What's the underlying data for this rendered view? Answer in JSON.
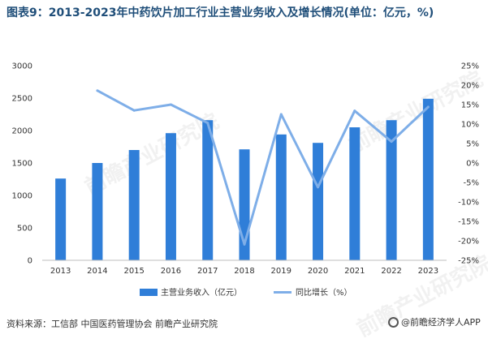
{
  "title": "图表9：2013-2023年中药饮片加工行业主营业务收入及增长情况(单位：亿元，%)",
  "source": "资料来源：工信部 中国医药管理协会 前瞻产业研究院",
  "brand": "@前瞻经济学人APP",
  "watermark": "前瞻产业研究院",
  "colors": {
    "bar": "#2f7ed8",
    "line": "#7eaee8"
  },
  "chart_data": {
    "type": "bar",
    "categories": [
      "2013",
      "2014",
      "2015",
      "2016",
      "2017",
      "2018",
      "2019",
      "2020",
      "2021",
      "2022",
      "2023"
    ],
    "series": [
      {
        "name": "主营业务收入（亿元）",
        "type": "bar",
        "axis": "left",
        "values": [
          1260,
          1500,
          1700,
          1960,
          2160,
          1710,
          1940,
          1810,
          2050,
          2160,
          2490
        ]
      },
      {
        "name": "同比增长（%）",
        "type": "line",
        "axis": "right",
        "values": [
          null,
          18.6,
          13.5,
          15.0,
          10.3,
          -20.9,
          12.5,
          -6.2,
          13.4,
          5.5,
          14.4
        ]
      }
    ],
    "y_left": {
      "ylim": [
        0,
        3000
      ],
      "ticks": [
        "0",
        "500",
        "1000",
        "1500",
        "2000",
        "2500",
        "3000"
      ]
    },
    "y_right": {
      "ylim": [
        -25,
        25
      ],
      "ticks": [
        "-25%",
        "-20%",
        "-15%",
        "-10%",
        "-5%",
        "0%",
        "5%",
        "10%",
        "15%",
        "20%",
        "25%"
      ]
    },
    "legend_position": "bottom"
  }
}
